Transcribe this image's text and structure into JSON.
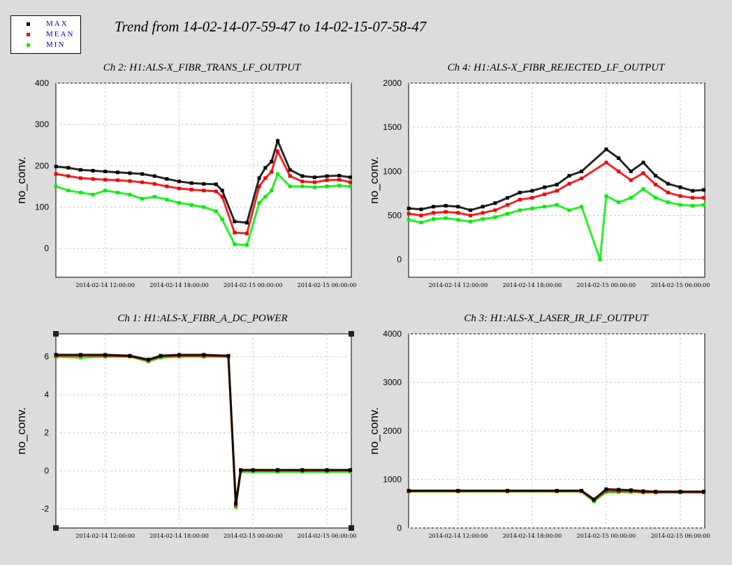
{
  "main_title": "Trend from 14-02-14-07-59-47 to 14-02-15-07-58-47",
  "legend": [
    {
      "label": "MAX",
      "color": "#000000"
    },
    {
      "label": "MEAN",
      "color": "#ee0000"
    },
    {
      "label": "MIN",
      "color": "#00ee00"
    }
  ],
  "chart_data": [
    {
      "type": "scatter",
      "title": "Ch 2: H1:ALS-X_FIBR_TRANS_LF_OUTPUT",
      "ylabel": "no_conv.",
      "ylim": [
        -70,
        400
      ],
      "yticks": [
        0,
        100,
        200,
        300,
        400
      ],
      "xlim_hours": [
        7.99,
        31.98
      ],
      "xticks": [
        {
          "h": 12,
          "label": "2014-02-14 12:00:00"
        },
        {
          "h": 18,
          "label": "2014-02-14 18:00:00"
        },
        {
          "h": 24,
          "label": "2014-02-15 00:00:00"
        },
        {
          "h": 30,
          "label": "2014-02-15 06:00:00"
        }
      ],
      "grid": true,
      "series": [
        {
          "name": "MAX",
          "color": "#000000",
          "x": [
            8.0,
            9.0,
            10.0,
            11.0,
            12.0,
            13.0,
            14.0,
            15.0,
            16.0,
            17.0,
            18.0,
            19.0,
            20.0,
            21.0,
            21.5,
            22.5,
            23.5,
            24.5,
            25.0,
            25.5,
            26.0,
            27.0,
            28.0,
            29.0,
            30.0,
            31.0,
            31.9
          ],
          "y": [
            198,
            195,
            190,
            188,
            186,
            184,
            182,
            180,
            175,
            168,
            162,
            158,
            156,
            155,
            140,
            65,
            62,
            170,
            195,
            210,
            260,
            190,
            175,
            172,
            175,
            176,
            172
          ]
        },
        {
          "name": "MEAN",
          "color": "#ee0000",
          "x": [
            8.0,
            9.0,
            10.0,
            11.0,
            12.0,
            13.0,
            14.0,
            15.0,
            16.0,
            17.0,
            18.0,
            19.0,
            20.0,
            21.0,
            21.5,
            22.5,
            23.5,
            24.5,
            25.0,
            25.5,
            26.0,
            27.0,
            28.0,
            29.0,
            30.0,
            31.0,
            31.9
          ],
          "y": [
            180,
            175,
            170,
            168,
            166,
            165,
            163,
            160,
            156,
            150,
            145,
            142,
            140,
            138,
            125,
            38,
            36,
            150,
            170,
            185,
            235,
            175,
            162,
            160,
            165,
            166,
            160
          ]
        },
        {
          "name": "MIN",
          "color": "#00ee00",
          "x": [
            8.0,
            9.0,
            10.0,
            11.0,
            12.0,
            13.0,
            14.0,
            15.0,
            16.0,
            17.0,
            18.0,
            19.0,
            20.0,
            21.0,
            21.5,
            22.5,
            23.5,
            24.5,
            25.0,
            25.5,
            26.0,
            27.0,
            28.0,
            29.0,
            30.0,
            31.0,
            31.9
          ],
          "y": [
            150,
            140,
            135,
            130,
            140,
            135,
            130,
            120,
            125,
            118,
            110,
            105,
            100,
            90,
            70,
            10,
            8,
            110,
            125,
            140,
            180,
            150,
            150,
            148,
            150,
            152,
            150
          ]
        }
      ]
    },
    {
      "type": "scatter",
      "title": "Ch 4: H1:ALS-X_FIBR_REJECTED_LF_OUTPUT",
      "ylabel": "no_conv.",
      "ylim": [
        -200,
        2000
      ],
      "yticks": [
        0,
        500,
        1000,
        1500,
        2000
      ],
      "xlim_hours": [
        7.99,
        31.98
      ],
      "xticks": [
        {
          "h": 12,
          "label": "2014-02-14 12:00:00"
        },
        {
          "h": 18,
          "label": "2014-02-14 18:00:00"
        },
        {
          "h": 24,
          "label": "2014-02-15 00:00:00"
        },
        {
          "h": 30,
          "label": "2014-02-15 06:00:00"
        }
      ],
      "grid": true,
      "series": [
        {
          "name": "MAX",
          "color": "#000000",
          "x": [
            8.0,
            9.0,
            10.0,
            11.0,
            12.0,
            13.0,
            14.0,
            15.0,
            16.0,
            17.0,
            18.0,
            19.0,
            20.0,
            21.0,
            22.0,
            23.5,
            24.0,
            25.0,
            26.0,
            27.0,
            28.0,
            29.0,
            30.0,
            31.0,
            31.9
          ],
          "y": [
            580,
            570,
            600,
            610,
            600,
            560,
            600,
            640,
            700,
            760,
            780,
            820,
            850,
            950,
            1000,
            null,
            1250,
            1150,
            1000,
            1100,
            950,
            860,
            820,
            780,
            790
          ]
        },
        {
          "name": "MEAN",
          "color": "#ee0000",
          "x": [
            8.0,
            9.0,
            10.0,
            11.0,
            12.0,
            13.0,
            14.0,
            15.0,
            16.0,
            17.0,
            18.0,
            19.0,
            20.0,
            21.0,
            22.0,
            23.5,
            24.0,
            25.0,
            26.0,
            27.0,
            28.0,
            29.0,
            30.0,
            31.0,
            31.9
          ],
          "y": [
            520,
            500,
            530,
            540,
            530,
            500,
            530,
            560,
            620,
            680,
            700,
            740,
            780,
            860,
            920,
            null,
            1100,
            1000,
            900,
            980,
            850,
            760,
            720,
            700,
            700
          ]
        },
        {
          "name": "MIN",
          "color": "#00ee00",
          "x": [
            8.0,
            9.0,
            10.0,
            11.0,
            12.0,
            13.0,
            14.0,
            15.0,
            16.0,
            17.0,
            18.0,
            19.0,
            20.0,
            21.0,
            22.0,
            23.5,
            24.0,
            25.0,
            26.0,
            27.0,
            28.0,
            29.0,
            30.0,
            31.0,
            31.9
          ],
          "y": [
            450,
            420,
            460,
            470,
            450,
            430,
            460,
            480,
            520,
            560,
            580,
            600,
            620,
            560,
            600,
            0,
            720,
            650,
            700,
            800,
            700,
            650,
            620,
            610,
            620
          ]
        }
      ]
    },
    {
      "type": "scatter",
      "title": "Ch 1: H1:ALS-X_FIBR_A_DC_POWER",
      "ylabel": "no_conv.",
      "ylim": [
        -3,
        7.2
      ],
      "yticks": [
        -2,
        0,
        2,
        4,
        6
      ],
      "xlim_hours": [
        7.99,
        31.98
      ],
      "xticks": [
        {
          "h": 12,
          "label": "2014-02-14 12:00:00"
        },
        {
          "h": 18,
          "label": "2014-02-14 18:00:00"
        },
        {
          "h": 24,
          "label": "2014-02-15 00:00:00"
        },
        {
          "h": 30,
          "label": "2014-02-15 06:00:00"
        }
      ],
      "grid": true,
      "series": [
        {
          "name": "MAX",
          "color": "#000000",
          "x": [
            8.0,
            10.0,
            12.0,
            14.0,
            15.5,
            16.5,
            18.0,
            20.0,
            22.0,
            22.6,
            23.0,
            24.0,
            26.0,
            28.0,
            30.0,
            31.9
          ],
          "y": [
            6.1,
            6.1,
            6.1,
            6.05,
            5.85,
            6.05,
            6.1,
            6.1,
            6.05,
            -1.7,
            0.05,
            0.05,
            0.05,
            0.05,
            0.05,
            0.05
          ]
        },
        {
          "name": "MEAN",
          "color": "#ee0000",
          "x": [
            8.0,
            10.0,
            12.0,
            14.0,
            15.5,
            16.5,
            18.0,
            20.0,
            22.0,
            22.6,
            23.0,
            24.0,
            26.0,
            28.0,
            30.0,
            31.9
          ],
          "y": [
            6.05,
            6.05,
            6.05,
            6.02,
            5.8,
            6.02,
            6.05,
            6.05,
            6.02,
            -1.8,
            0.02,
            0.02,
            0.02,
            0.02,
            0.02,
            0.02
          ]
        },
        {
          "name": "MIN",
          "color": "#00ee00",
          "x": [
            8.0,
            10.0,
            12.0,
            14.0,
            15.5,
            16.5,
            18.0,
            20.0,
            22.0,
            22.6,
            23.0,
            24.0,
            26.0,
            28.0,
            30.0,
            31.9
          ],
          "y": [
            6.0,
            5.95,
            6.0,
            6.0,
            5.75,
            5.95,
            6.0,
            6.0,
            6.0,
            -1.9,
            -0.05,
            -0.05,
            -0.05,
            -0.05,
            -0.05,
            -0.05
          ]
        }
      ]
    },
    {
      "type": "scatter",
      "title": "Ch 3: H1:ALS-X_LASER_IR_LF_OUTPUT",
      "ylabel": "no_conv.",
      "ylim": [
        0,
        4000
      ],
      "yticks": [
        0,
        1000,
        2000,
        3000,
        4000
      ],
      "xlim_hours": [
        7.99,
        31.98
      ],
      "xticks": [
        {
          "h": 12,
          "label": "2014-02-14 12:00:00"
        },
        {
          "h": 18,
          "label": "2014-02-14 18:00:00"
        },
        {
          "h": 24,
          "label": "2014-02-15 00:00:00"
        },
        {
          "h": 30,
          "label": "2014-02-15 06:00:00"
        }
      ],
      "grid": true,
      "series": [
        {
          "name": "MAX",
          "color": "#000000",
          "x": [
            8.0,
            12.0,
            16.0,
            20.0,
            22.0,
            23.0,
            24.0,
            25.0,
            26.0,
            27.0,
            28.0,
            30.0,
            31.9
          ],
          "y": [
            770,
            770,
            770,
            770,
            770,
            590,
            800,
            790,
            780,
            760,
            750,
            750,
            750
          ]
        },
        {
          "name": "MEAN",
          "color": "#ee0000",
          "x": [
            8.0,
            12.0,
            16.0,
            20.0,
            22.0,
            23.0,
            24.0,
            25.0,
            26.0,
            27.0,
            28.0,
            30.0,
            31.9
          ],
          "y": [
            760,
            760,
            760,
            760,
            760,
            570,
            770,
            760,
            760,
            740,
            740,
            740,
            740
          ]
        },
        {
          "name": "MIN",
          "color": "#00ee00",
          "x": [
            8.0,
            12.0,
            16.0,
            20.0,
            22.0,
            23.0,
            24.0,
            25.0,
            26.0,
            27.0,
            28.0,
            30.0,
            31.9
          ],
          "y": [
            750,
            750,
            750,
            750,
            750,
            550,
            740,
            740,
            740,
            730,
            730,
            730,
            730
          ]
        }
      ]
    }
  ]
}
